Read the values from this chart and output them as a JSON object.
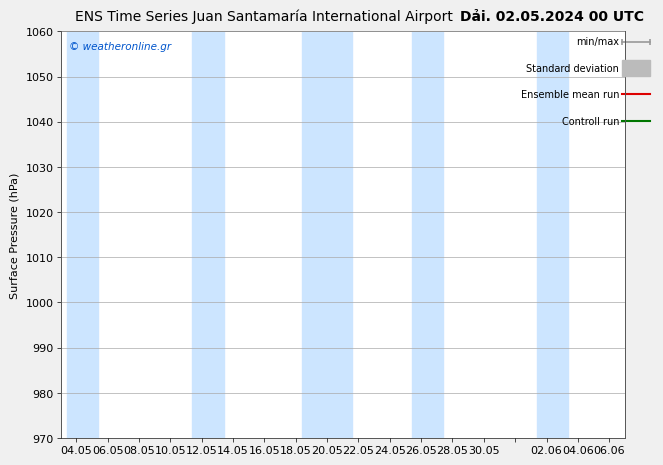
{
  "title": "ENS Time Series Juan Santamaría International Airport",
  "title_right": "Dải. 02.05.2024 00 UTC",
  "ylabel": "Surface Pressure (hPa)",
  "watermark": "© weatheronline.gr",
  "ylim": [
    970,
    1060
  ],
  "yticks": [
    970,
    980,
    990,
    1000,
    1010,
    1020,
    1030,
    1040,
    1050,
    1060
  ],
  "xtick_labels": [
    "04.05",
    "06.05",
    "08.05",
    "10.05",
    "12.05",
    "14.05",
    "16.05",
    "18.05",
    "20.05",
    "22.05",
    "24.05",
    "26.05",
    "28.05",
    "30.05",
    "",
    "02.06",
    "04.06",
    "06.06"
  ],
  "bg_color": "#f0f0f0",
  "plot_bg_color": "#ffffff",
  "band_color": "#cce5ff",
  "title_fontsize": 10,
  "axis_fontsize": 8,
  "tick_fontsize": 8
}
